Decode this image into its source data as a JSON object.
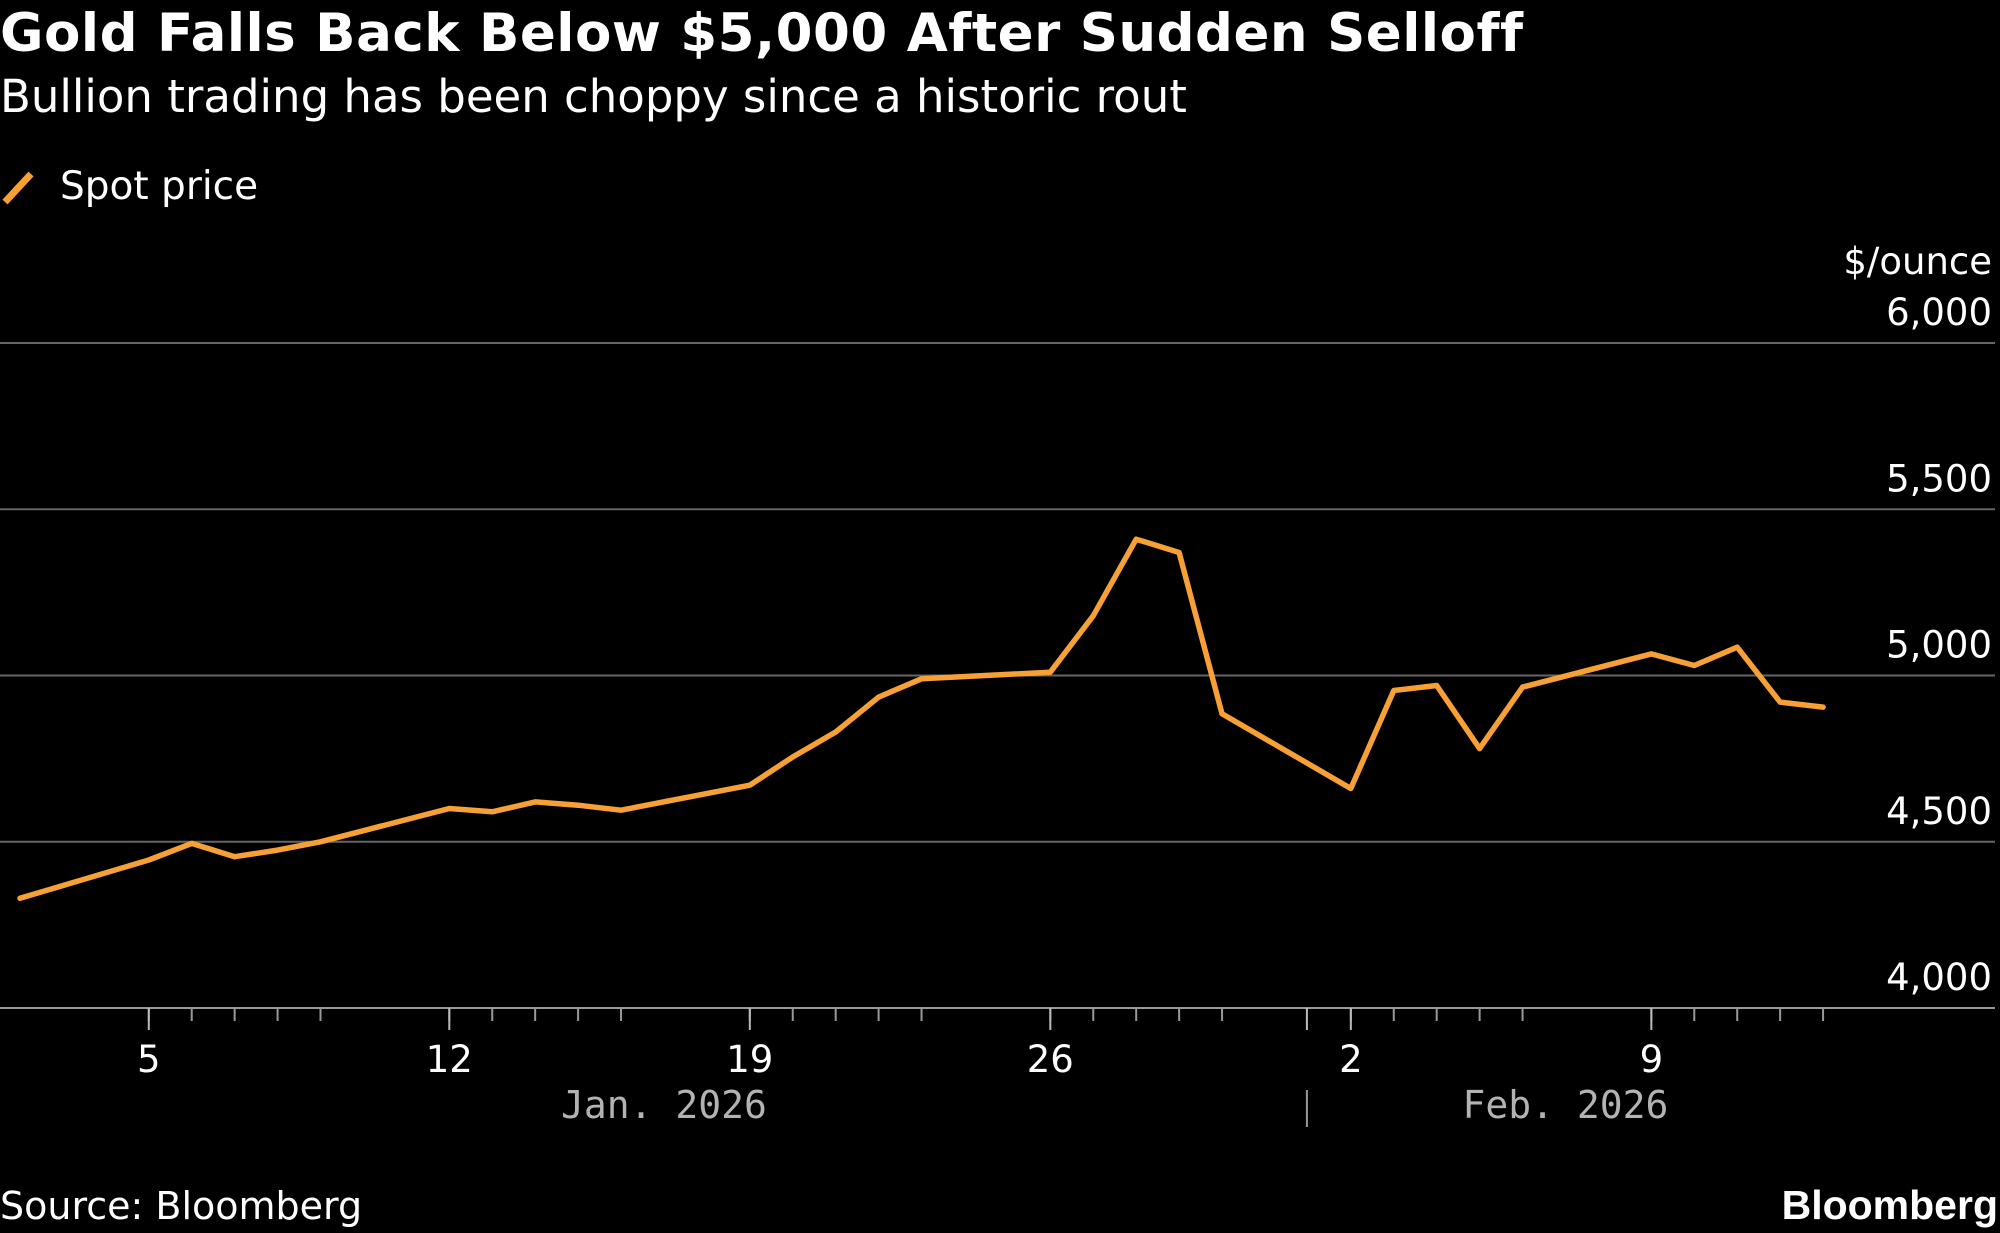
{
  "header": {
    "title": "Gold Falls Back Below $5,000 After Sudden Selloff",
    "subtitle": "Bullion trading has been choppy since a historic rout"
  },
  "legend": {
    "label": "Spot price",
    "color": "#f7a035"
  },
  "footer": {
    "source": "Source: Bloomberg",
    "brand": "Bloomberg"
  },
  "colors": {
    "background": "#000000",
    "text": "#ffffff",
    "gridline": "#666666",
    "month_label": "#b3b3b3",
    "series": "#f7a035"
  },
  "chart_data": {
    "type": "line",
    "title": "Gold Falls Back Below $5,000 After Sudden Selloff",
    "subtitle": "Bullion trading has been choppy since a historic rout",
    "ylabel": "$/ounce",
    "ylim": [
      4000,
      6000
    ],
    "yticks": [
      4000,
      4500,
      5000,
      5500,
      6000
    ],
    "ytick_labels": [
      "4,000",
      "4,500",
      "5,000",
      "5,500",
      "6,000"
    ],
    "grid": true,
    "legend_position": "top-left",
    "xlim": [
      "2026-01-02",
      "2026-02-14"
    ],
    "xtick_labels": [
      {
        "date": "2026-01-05",
        "label": "5"
      },
      {
        "date": "2026-01-12",
        "label": "12"
      },
      {
        "date": "2026-01-19",
        "label": "19"
      },
      {
        "date": "2026-01-26",
        "label": "26"
      },
      {
        "date": "2026-02-02",
        "label": "2"
      },
      {
        "date": "2026-02-09",
        "label": "9"
      }
    ],
    "month_labels": [
      {
        "label": "Jan. 2026",
        "center": "2026-01-17"
      },
      {
        "label": "Feb. 2026",
        "center": "2026-02-07"
      }
    ],
    "month_divider": "2026-02-01",
    "series": [
      {
        "name": "Spot price",
        "x": [
          "2026-01-02",
          "2026-01-05",
          "2026-01-06",
          "2026-01-07",
          "2026-01-08",
          "2026-01-09",
          "2026-01-12",
          "2026-01-13",
          "2026-01-14",
          "2026-01-15",
          "2026-01-16",
          "2026-01-19",
          "2026-01-20",
          "2026-01-21",
          "2026-01-22",
          "2026-01-23",
          "2026-01-26",
          "2026-01-27",
          "2026-01-28",
          "2026-01-29",
          "2026-01-30",
          "2026-02-02",
          "2026-02-03",
          "2026-02-04",
          "2026-02-05",
          "2026-02-06",
          "2026-02-09",
          "2026-02-10",
          "2026-02-11",
          "2026-02-12",
          "2026-02-13"
        ],
        "values": [
          4330,
          4445,
          4495,
          4455,
          4475,
          4500,
          4600,
          4590,
          4620,
          4610,
          4595,
          4670,
          4755,
          4830,
          4935,
          4990,
          5010,
          5180,
          5410,
          5370,
          4885,
          4660,
          4955,
          4970,
          4780,
          4965,
          5065,
          5030,
          5085,
          4920,
          4905
        ]
      }
    ]
  }
}
